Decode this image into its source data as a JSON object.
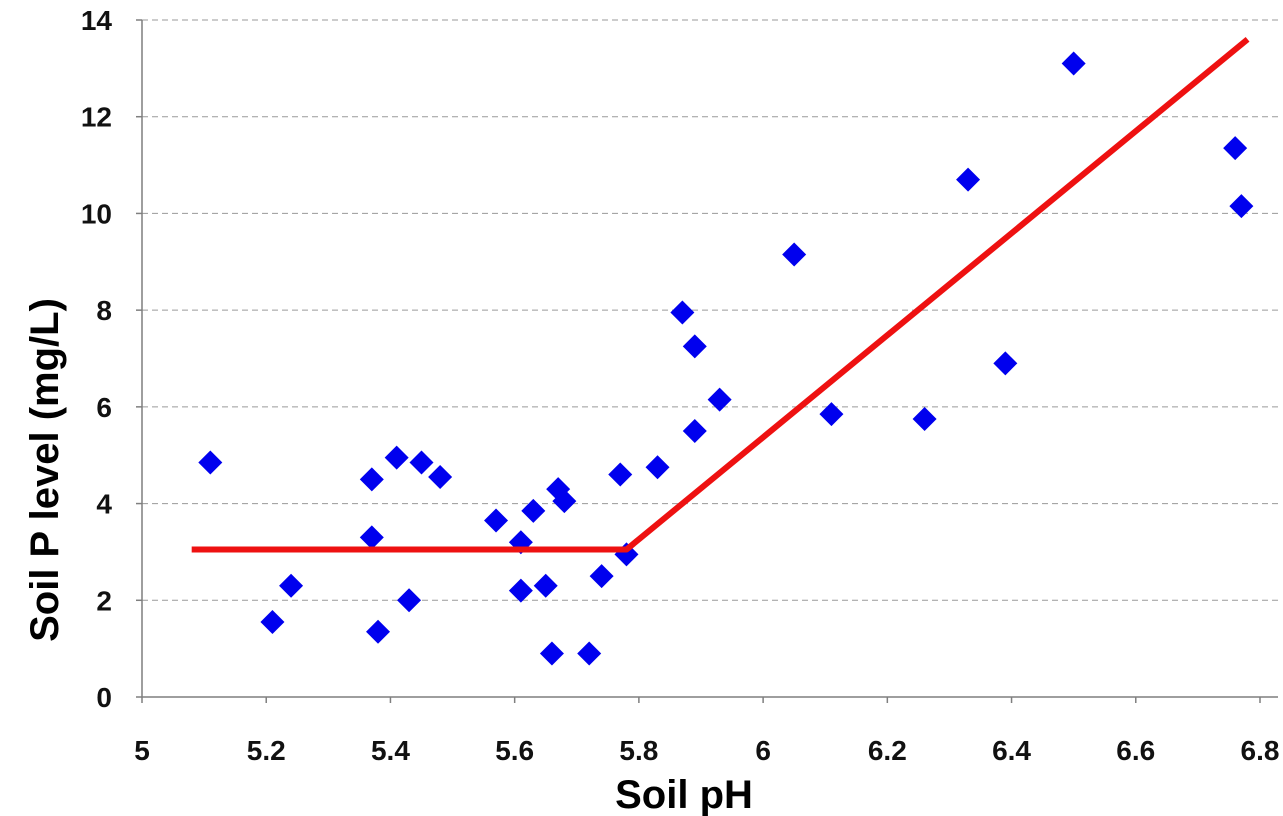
{
  "chart_data": {
    "type": "scatter",
    "title": "",
    "xlabel": "Soil pH",
    "ylabel": "Soil P level (mg/L)",
    "xlim": [
      5,
      6.8
    ],
    "ylim": [
      0,
      14
    ],
    "x_ticks": [
      5,
      5.2,
      5.4,
      5.6,
      5.8,
      6,
      6.2,
      6.4,
      6.6,
      6.8
    ],
    "x_tick_labels": [
      "5",
      "5.2",
      "5.4",
      "5.6",
      "5.8",
      "6",
      "6.2",
      "6.4",
      "6.6",
      "6.8"
    ],
    "y_ticks": [
      0,
      2,
      4,
      6,
      8,
      10,
      12,
      14
    ],
    "y_tick_labels": [
      "0",
      "2",
      "4",
      "6",
      "8",
      "10",
      "12",
      "14"
    ],
    "grid": "horizontal dashed",
    "marker": "diamond",
    "colors": {
      "points": "#0000ee",
      "fit_line": "#ee1111"
    },
    "series": [
      {
        "type": "scatter",
        "points": [
          [
            5.11,
            4.85
          ],
          [
            5.21,
            1.55
          ],
          [
            5.24,
            2.3
          ],
          [
            5.37,
            4.5
          ],
          [
            5.37,
            3.3
          ],
          [
            5.38,
            1.35
          ],
          [
            5.41,
            4.95
          ],
          [
            5.43,
            2.0
          ],
          [
            5.45,
            4.85
          ],
          [
            5.48,
            4.55
          ],
          [
            5.57,
            3.65
          ],
          [
            5.61,
            3.2
          ],
          [
            5.61,
            2.2
          ],
          [
            5.63,
            3.85
          ],
          [
            5.65,
            2.3
          ],
          [
            5.66,
            0.9
          ],
          [
            5.67,
            4.3
          ],
          [
            5.68,
            4.05
          ],
          [
            5.72,
            0.9
          ],
          [
            5.74,
            2.5
          ],
          [
            5.77,
            4.6
          ],
          [
            5.78,
            2.95
          ],
          [
            5.83,
            4.75
          ],
          [
            5.87,
            7.95
          ],
          [
            5.89,
            7.25
          ],
          [
            5.89,
            5.5
          ],
          [
            5.93,
            6.15
          ],
          [
            6.05,
            9.15
          ],
          [
            6.11,
            5.85
          ],
          [
            6.26,
            5.75
          ],
          [
            6.33,
            10.7
          ],
          [
            6.39,
            6.9
          ],
          [
            6.5,
            13.1
          ],
          [
            6.76,
            11.35
          ],
          [
            6.77,
            10.15
          ]
        ]
      },
      {
        "type": "line",
        "points": [
          [
            5.08,
            3.05
          ],
          [
            5.78,
            3.05
          ],
          [
            6.78,
            13.6
          ]
        ]
      }
    ]
  }
}
